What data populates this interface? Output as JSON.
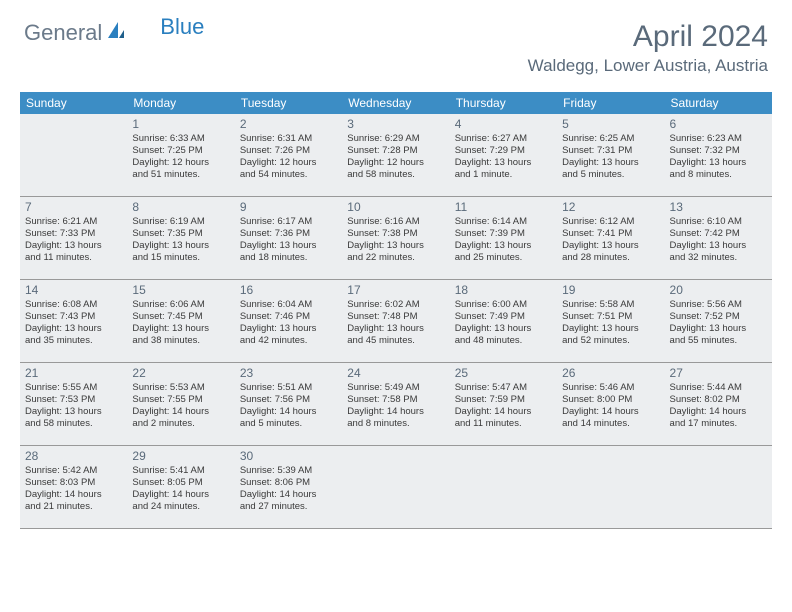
{
  "logo": {
    "text1": "General",
    "text2": "Blue"
  },
  "title": "April 2024",
  "location": "Waldegg, Lower Austria, Austria",
  "dow": [
    "Sunday",
    "Monday",
    "Tuesday",
    "Wednesday",
    "Thursday",
    "Friday",
    "Saturday"
  ],
  "colors": {
    "header_bg": "#3c8dc5",
    "cell_bg": "#eceef0",
    "text": "#5a6a7a"
  },
  "weeks": [
    [
      null,
      {
        "n": "1",
        "sr": "Sunrise: 6:33 AM",
        "ss": "Sunset: 7:25 PM",
        "d1": "Daylight: 12 hours",
        "d2": "and 51 minutes."
      },
      {
        "n": "2",
        "sr": "Sunrise: 6:31 AM",
        "ss": "Sunset: 7:26 PM",
        "d1": "Daylight: 12 hours",
        "d2": "and 54 minutes."
      },
      {
        "n": "3",
        "sr": "Sunrise: 6:29 AM",
        "ss": "Sunset: 7:28 PM",
        "d1": "Daylight: 12 hours",
        "d2": "and 58 minutes."
      },
      {
        "n": "4",
        "sr": "Sunrise: 6:27 AM",
        "ss": "Sunset: 7:29 PM",
        "d1": "Daylight: 13 hours",
        "d2": "and 1 minute."
      },
      {
        "n": "5",
        "sr": "Sunrise: 6:25 AM",
        "ss": "Sunset: 7:31 PM",
        "d1": "Daylight: 13 hours",
        "d2": "and 5 minutes."
      },
      {
        "n": "6",
        "sr": "Sunrise: 6:23 AM",
        "ss": "Sunset: 7:32 PM",
        "d1": "Daylight: 13 hours",
        "d2": "and 8 minutes."
      }
    ],
    [
      {
        "n": "7",
        "sr": "Sunrise: 6:21 AM",
        "ss": "Sunset: 7:33 PM",
        "d1": "Daylight: 13 hours",
        "d2": "and 11 minutes."
      },
      {
        "n": "8",
        "sr": "Sunrise: 6:19 AM",
        "ss": "Sunset: 7:35 PM",
        "d1": "Daylight: 13 hours",
        "d2": "and 15 minutes."
      },
      {
        "n": "9",
        "sr": "Sunrise: 6:17 AM",
        "ss": "Sunset: 7:36 PM",
        "d1": "Daylight: 13 hours",
        "d2": "and 18 minutes."
      },
      {
        "n": "10",
        "sr": "Sunrise: 6:16 AM",
        "ss": "Sunset: 7:38 PM",
        "d1": "Daylight: 13 hours",
        "d2": "and 22 minutes."
      },
      {
        "n": "11",
        "sr": "Sunrise: 6:14 AM",
        "ss": "Sunset: 7:39 PM",
        "d1": "Daylight: 13 hours",
        "d2": "and 25 minutes."
      },
      {
        "n": "12",
        "sr": "Sunrise: 6:12 AM",
        "ss": "Sunset: 7:41 PM",
        "d1": "Daylight: 13 hours",
        "d2": "and 28 minutes."
      },
      {
        "n": "13",
        "sr": "Sunrise: 6:10 AM",
        "ss": "Sunset: 7:42 PM",
        "d1": "Daylight: 13 hours",
        "d2": "and 32 minutes."
      }
    ],
    [
      {
        "n": "14",
        "sr": "Sunrise: 6:08 AM",
        "ss": "Sunset: 7:43 PM",
        "d1": "Daylight: 13 hours",
        "d2": "and 35 minutes."
      },
      {
        "n": "15",
        "sr": "Sunrise: 6:06 AM",
        "ss": "Sunset: 7:45 PM",
        "d1": "Daylight: 13 hours",
        "d2": "and 38 minutes."
      },
      {
        "n": "16",
        "sr": "Sunrise: 6:04 AM",
        "ss": "Sunset: 7:46 PM",
        "d1": "Daylight: 13 hours",
        "d2": "and 42 minutes."
      },
      {
        "n": "17",
        "sr": "Sunrise: 6:02 AM",
        "ss": "Sunset: 7:48 PM",
        "d1": "Daylight: 13 hours",
        "d2": "and 45 minutes."
      },
      {
        "n": "18",
        "sr": "Sunrise: 6:00 AM",
        "ss": "Sunset: 7:49 PM",
        "d1": "Daylight: 13 hours",
        "d2": "and 48 minutes."
      },
      {
        "n": "19",
        "sr": "Sunrise: 5:58 AM",
        "ss": "Sunset: 7:51 PM",
        "d1": "Daylight: 13 hours",
        "d2": "and 52 minutes."
      },
      {
        "n": "20",
        "sr": "Sunrise: 5:56 AM",
        "ss": "Sunset: 7:52 PM",
        "d1": "Daylight: 13 hours",
        "d2": "and 55 minutes."
      }
    ],
    [
      {
        "n": "21",
        "sr": "Sunrise: 5:55 AM",
        "ss": "Sunset: 7:53 PM",
        "d1": "Daylight: 13 hours",
        "d2": "and 58 minutes."
      },
      {
        "n": "22",
        "sr": "Sunrise: 5:53 AM",
        "ss": "Sunset: 7:55 PM",
        "d1": "Daylight: 14 hours",
        "d2": "and 2 minutes."
      },
      {
        "n": "23",
        "sr": "Sunrise: 5:51 AM",
        "ss": "Sunset: 7:56 PM",
        "d1": "Daylight: 14 hours",
        "d2": "and 5 minutes."
      },
      {
        "n": "24",
        "sr": "Sunrise: 5:49 AM",
        "ss": "Sunset: 7:58 PM",
        "d1": "Daylight: 14 hours",
        "d2": "and 8 minutes."
      },
      {
        "n": "25",
        "sr": "Sunrise: 5:47 AM",
        "ss": "Sunset: 7:59 PM",
        "d1": "Daylight: 14 hours",
        "d2": "and 11 minutes."
      },
      {
        "n": "26",
        "sr": "Sunrise: 5:46 AM",
        "ss": "Sunset: 8:00 PM",
        "d1": "Daylight: 14 hours",
        "d2": "and 14 minutes."
      },
      {
        "n": "27",
        "sr": "Sunrise: 5:44 AM",
        "ss": "Sunset: 8:02 PM",
        "d1": "Daylight: 14 hours",
        "d2": "and 17 minutes."
      }
    ],
    [
      {
        "n": "28",
        "sr": "Sunrise: 5:42 AM",
        "ss": "Sunset: 8:03 PM",
        "d1": "Daylight: 14 hours",
        "d2": "and 21 minutes."
      },
      {
        "n": "29",
        "sr": "Sunrise: 5:41 AM",
        "ss": "Sunset: 8:05 PM",
        "d1": "Daylight: 14 hours",
        "d2": "and 24 minutes."
      },
      {
        "n": "30",
        "sr": "Sunrise: 5:39 AM",
        "ss": "Sunset: 8:06 PM",
        "d1": "Daylight: 14 hours",
        "d2": "and 27 minutes."
      },
      null,
      null,
      null,
      null
    ]
  ]
}
